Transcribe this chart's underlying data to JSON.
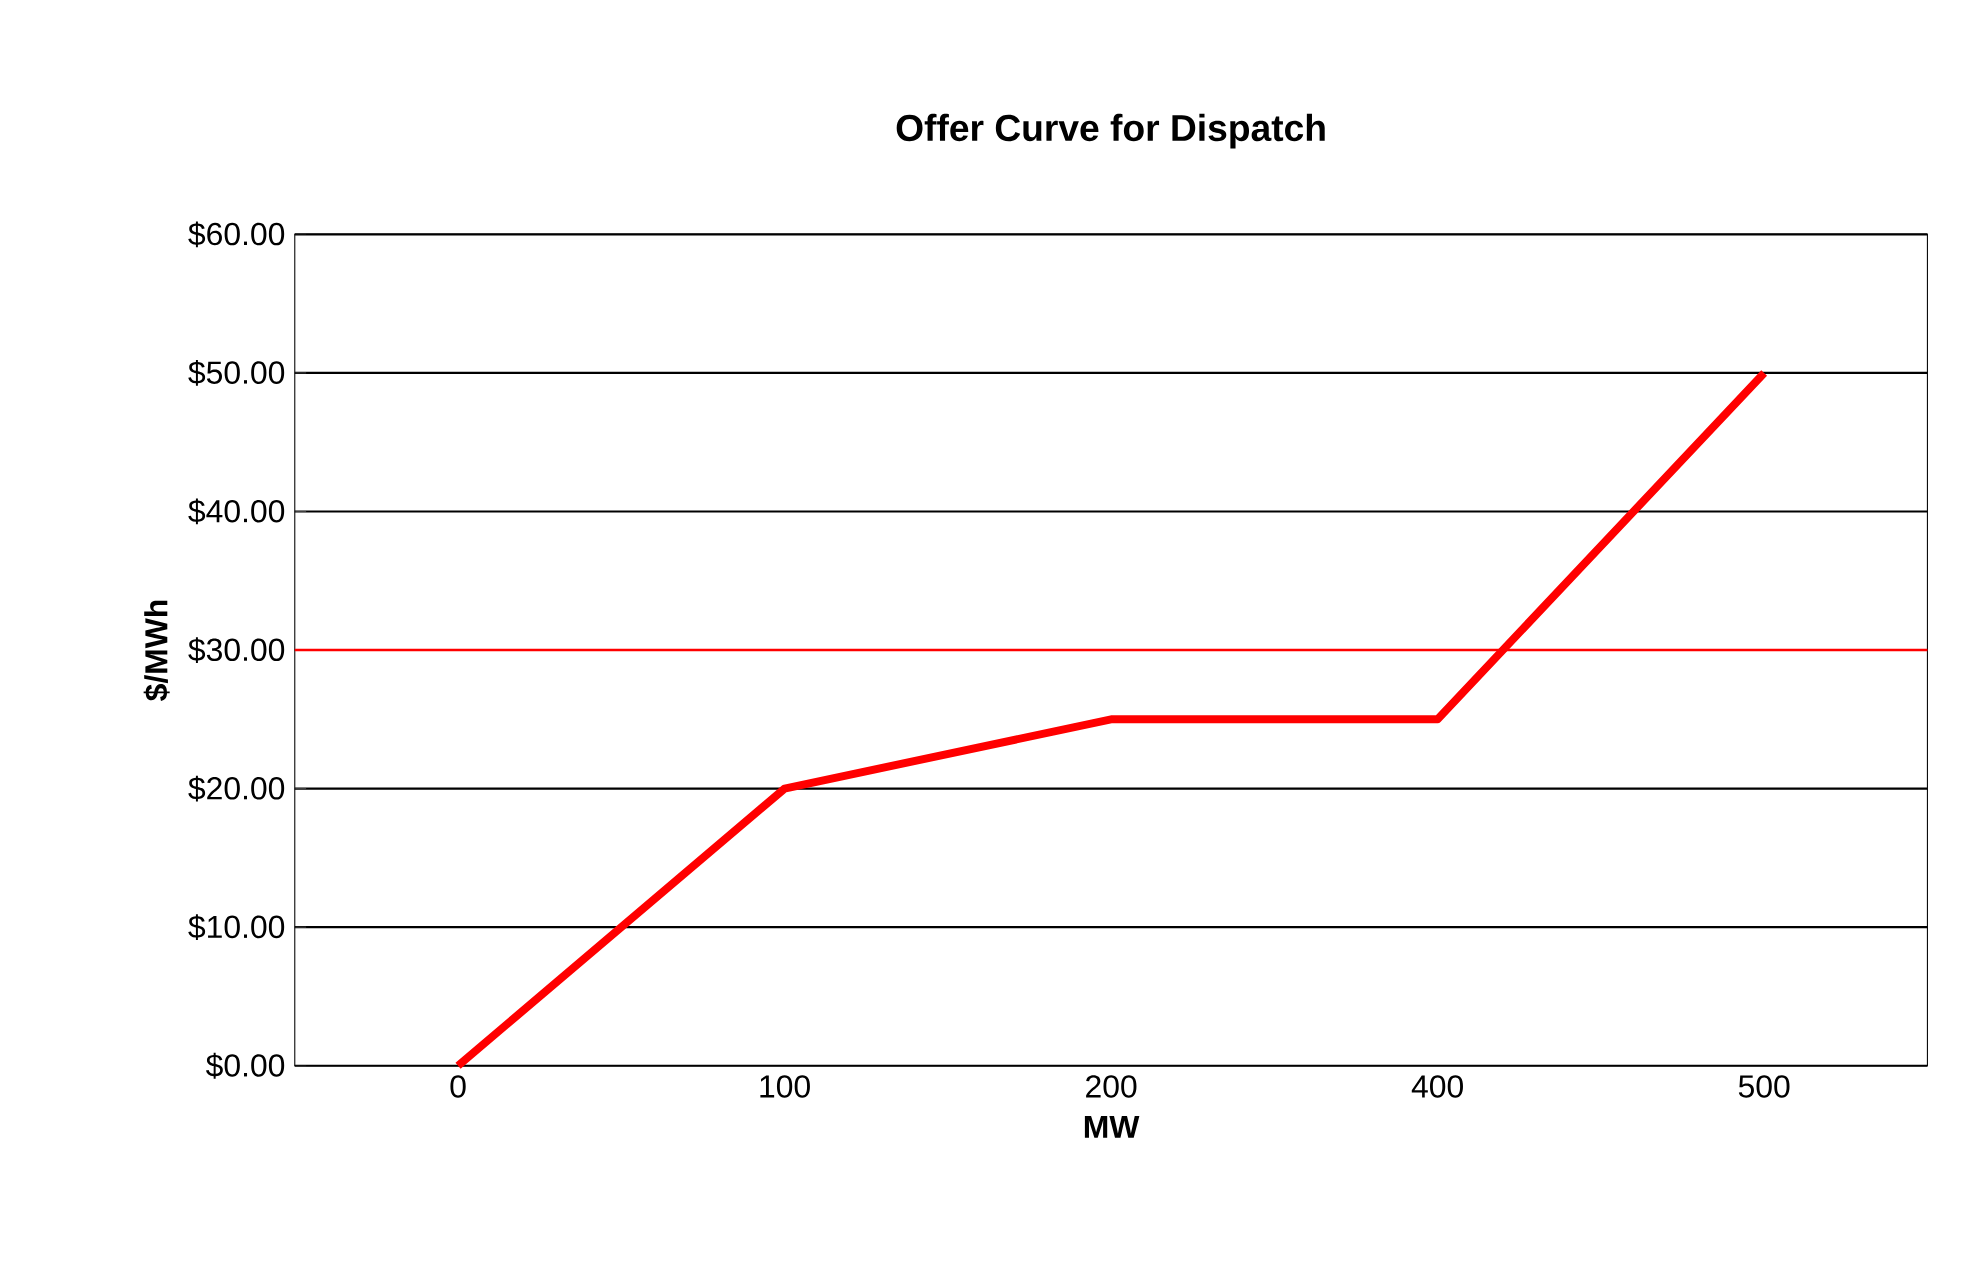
{
  "chart_data": {
    "type": "line",
    "title": "Offer Curve for Dispatch",
    "xlabel": "MW",
    "ylabel": "$/MWh",
    "categories": [
      "0",
      "100",
      "200",
      "400",
      "500"
    ],
    "series": [
      {
        "color": "#ff0000",
        "values": [
          0,
          20,
          25,
          25,
          50
        ]
      }
    ],
    "ylim": [
      0,
      60
    ],
    "yticks": [
      {
        "value": 0,
        "label": "$0.00"
      },
      {
        "value": 10,
        "label": "$10.00"
      },
      {
        "value": 20,
        "label": "$20.00"
      },
      {
        "value": 30,
        "label": "$30.00"
      },
      {
        "value": 40,
        "label": "$40.00"
      },
      {
        "value": 50,
        "label": "$50.00"
      },
      {
        "value": 60,
        "label": "$60.00"
      }
    ],
    "grid": "y",
    "marker": "none",
    "line_style": "solid",
    "ref_lines": [
      {
        "axis": "y",
        "value": 30,
        "color": "#ff0000"
      }
    ]
  }
}
